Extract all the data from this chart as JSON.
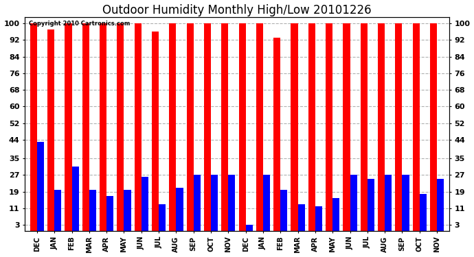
{
  "title": "Outdoor Humidity Monthly High/Low 20101226",
  "copyright": "Copyright 2010 Cartronics.com",
  "months": [
    "DEC",
    "JAN",
    "FEB",
    "MAR",
    "APR",
    "MAY",
    "JUN",
    "JUL",
    "AUG",
    "SEP",
    "OCT",
    "NOV",
    "DEC",
    "JAN",
    "FEB",
    "MAR",
    "APR",
    "MAY",
    "JUN",
    "JUL",
    "AUG",
    "SEP",
    "OCT",
    "NOV"
  ],
  "high_values": [
    100,
    97,
    100,
    100,
    100,
    100,
    100,
    96,
    100,
    100,
    100,
    100,
    100,
    100,
    93,
    100,
    100,
    100,
    100,
    100,
    100,
    100,
    100,
    100
  ],
  "low_values": [
    43,
    20,
    31,
    20,
    17,
    20,
    26,
    13,
    21,
    27,
    27,
    27,
    3,
    27,
    20,
    13,
    12,
    16,
    27,
    25,
    27,
    27,
    18,
    25
  ],
  "bar_color_high": "#ff0000",
  "bar_color_low": "#0000ff",
  "background_color": "#ffffff",
  "plot_bg_color": "#ffffff",
  "title_fontsize": 12,
  "yticks": [
    3,
    11,
    19,
    27,
    35,
    44,
    52,
    60,
    68,
    76,
    84,
    92,
    100
  ],
  "ymin": 0,
  "ymax": 103,
  "grid_color": "#b0b0b0",
  "bar_width": 0.4
}
